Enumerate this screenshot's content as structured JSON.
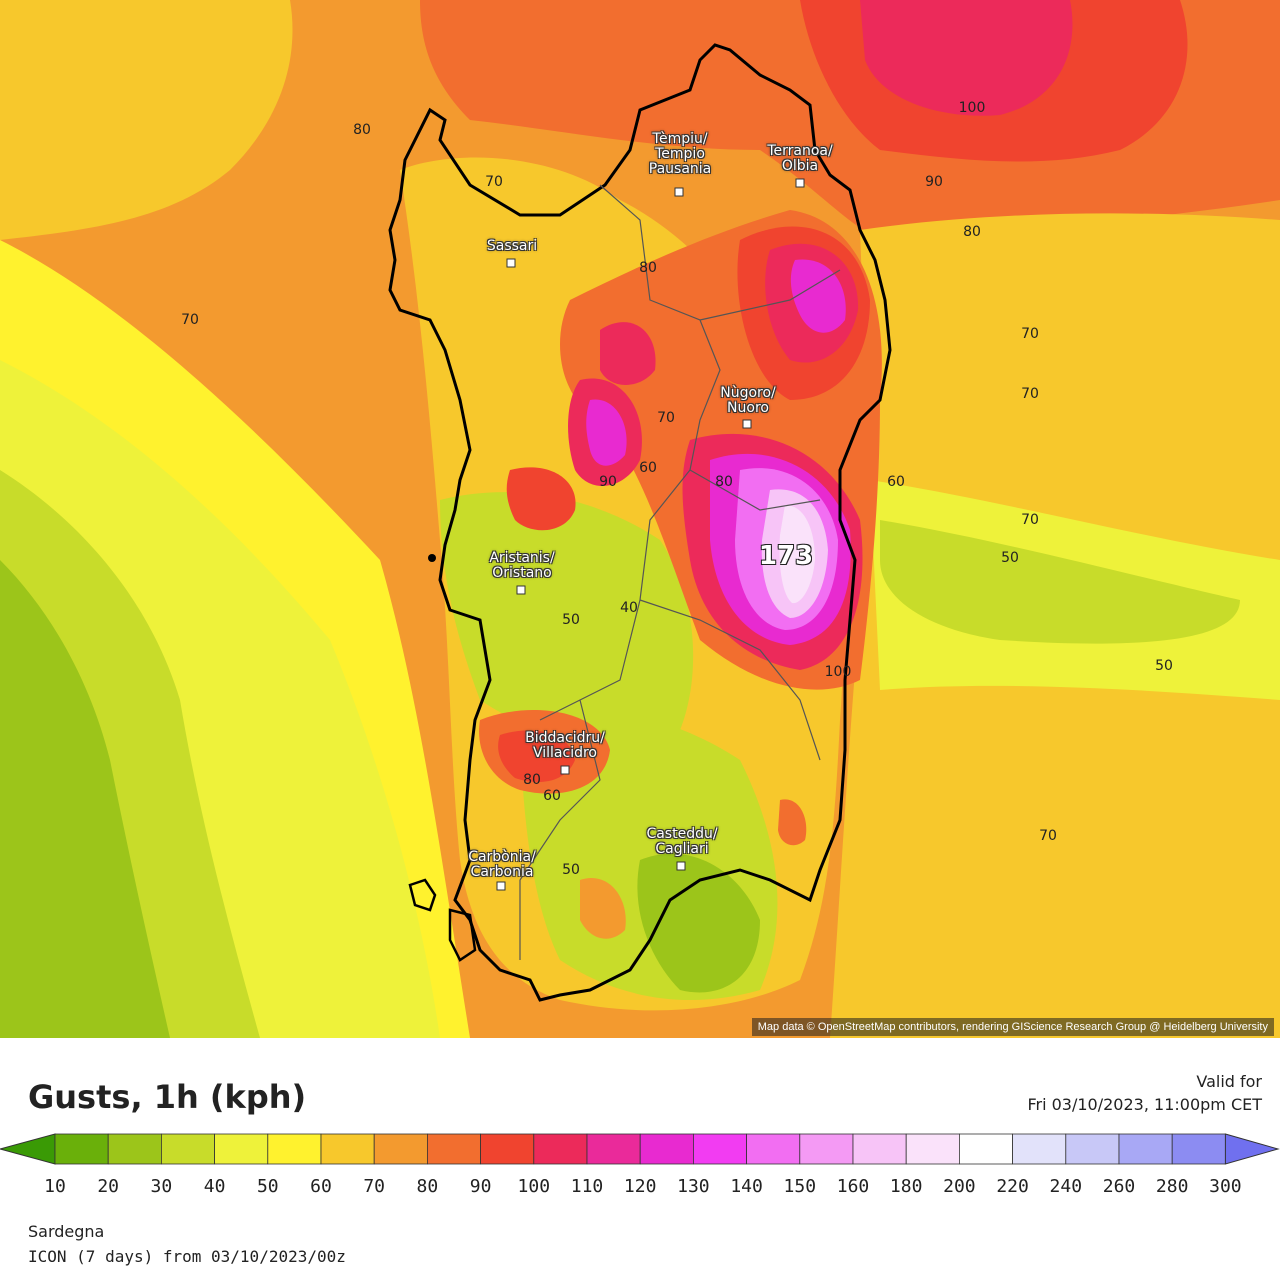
{
  "map": {
    "attribution": "Map data © OpenStreetMap contributors, rendering GIScience Research Group @ Heidelberg University",
    "max_value": "173",
    "cities": [
      {
        "name": "Tèmpiu/\nTempio\nPausania"
      },
      {
        "name": "Terranoa/\nOlbia"
      },
      {
        "name": "Sassari"
      },
      {
        "name": "Nùgoro/\nNuoro"
      },
      {
        "name": "Aristanis/\nOristano"
      },
      {
        "name": "Biddacidru/\nVillacidro"
      },
      {
        "name": "Casteddu/\nCagliari"
      },
      {
        "name": "Carbònia/\nCarbonia"
      }
    ],
    "isolines": [
      "80",
      "70",
      "100",
      "90",
      "80",
      "70",
      "70",
      "80",
      "70",
      "70",
      "60",
      "90",
      "80",
      "60",
      "70",
      "50",
      "50",
      "40",
      "50",
      "100",
      "80",
      "60",
      "50",
      "70"
    ]
  },
  "legend": {
    "title": "Gusts, 1h (kph)",
    "valid_label": "Valid for",
    "valid_date": "Fri 03/10/2023, 11:00pm CET",
    "ticks": [
      "10",
      "20",
      "30",
      "40",
      "50",
      "60",
      "70",
      "80",
      "90",
      "100",
      "110",
      "120",
      "130",
      "140",
      "150",
      "160",
      "180",
      "200",
      "220",
      "240",
      "260",
      "280",
      "300"
    ],
    "colors": [
      "#3a9a05",
      "#6ab00a",
      "#9cc51a",
      "#c8dc2a",
      "#eef23a",
      "#fff22e",
      "#f7c82c",
      "#f39a2f",
      "#f26e2f",
      "#f0442f",
      "#ec2a5a",
      "#ea2a9a",
      "#e82ad0",
      "#f23cf2",
      "#f26ef2",
      "#f49af4",
      "#f7c4f7",
      "#fae2fa",
      "#ffffff",
      "#e2e2fa",
      "#c8c8f7",
      "#a8a8f5",
      "#8c8cf2",
      "#7070ef"
    ]
  },
  "region": "Sardegna",
  "model": "ICON (7 days) from 03/10/2023/00z"
}
